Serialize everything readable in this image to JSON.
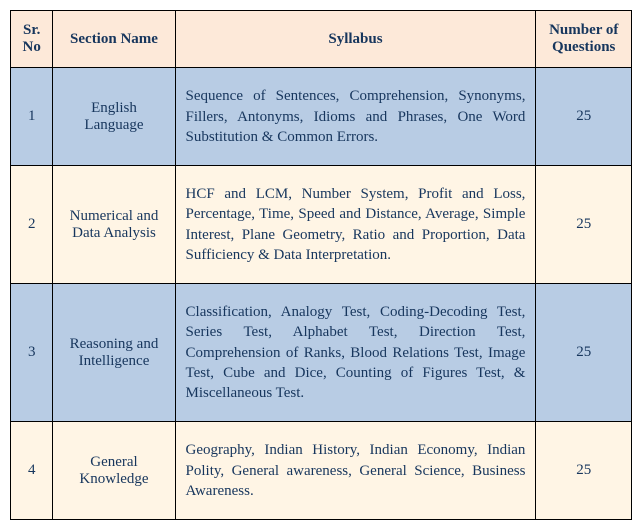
{
  "table": {
    "header": {
      "sr": "Sr. No",
      "section": "Section Name",
      "syllabus": "Syllabus",
      "num": "Number of Questions"
    },
    "rows": [
      {
        "sr": "1",
        "section": "English Language",
        "syllabus": "Sequence of Sentences, Comprehension, Synonyms, Fillers, Antonyms, Idioms and Phrases, One Word Substitution & Common Errors.",
        "num": "25"
      },
      {
        "sr": "2",
        "section": "Numerical and Data Analysis",
        "syllabus": "HCF and LCM, Number System, Profit and Loss, Percentage, Time, Speed and Distance, Average, Simple Interest, Plane Geometry, Ratio and Proportion, Data Sufficiency & Data Interpretation.",
        "num": "25"
      },
      {
        "sr": "3",
        "section": "Reasoning and Intelligence",
        "syllabus": "Classification, Analogy Test, Coding-Decoding Test, Series Test, Alphabet Test, Direction Test, Comprehension of Ranks, Blood Relations Test, Image Test, Cube and Dice, Counting of Figures Test, & Miscellaneous Test.",
        "num": "25"
      },
      {
        "sr": "4",
        "section": "General Knowledge",
        "syllabus": "Geography, Indian History, Indian Economy, Indian Polity, General awareness, General Science, Business Awareness.",
        "num": "25"
      }
    ],
    "colors": {
      "header_bg": "#fde9d9",
      "row_a_bg": "#b8cce4",
      "row_b_bg": "#fff5e5",
      "text_color": "#17365d",
      "border_color": "#000000"
    }
  }
}
